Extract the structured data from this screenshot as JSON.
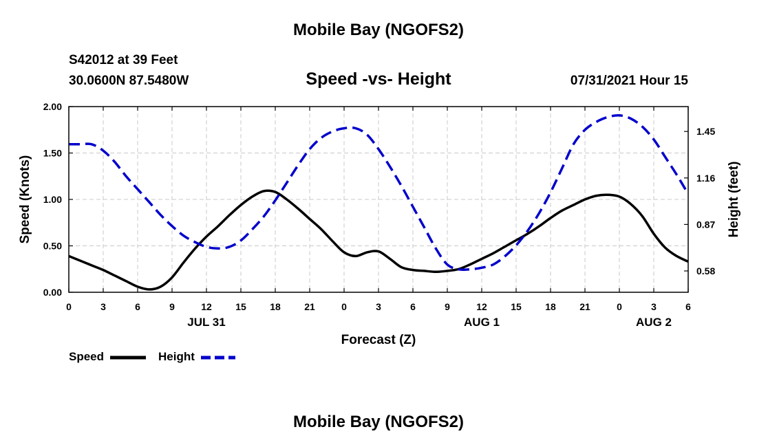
{
  "header": {
    "main_title": "Mobile Bay (NGOFS2)",
    "station": "S42012 at 39 Feet",
    "coords": "30.0600N  87.5480W",
    "subtitle": "Speed -vs- Height",
    "datetime": "07/31/2021 Hour 15"
  },
  "footer": {
    "title": "Mobile Bay (NGOFS2)"
  },
  "chart_data": {
    "type": "line",
    "title": "Speed -vs- Height",
    "xlabel": "Forecast (Z)",
    "ylabel": "Speed (Knots)",
    "y2label": "Height (feet)",
    "xlim": [
      0,
      54
    ],
    "ylim": [
      0,
      2.0
    ],
    "y2lim": [
      0.447,
      1.605
    ],
    "x_ticks": [
      0,
      3,
      6,
      9,
      12,
      15,
      18,
      21,
      24,
      27,
      30,
      33,
      36,
      39,
      42,
      45,
      48,
      51,
      54
    ],
    "x_tick_labels": [
      "0",
      "3",
      "6",
      "9",
      "12",
      "15",
      "18",
      "21",
      "0",
      "3",
      "6",
      "9",
      "12",
      "15",
      "18",
      "21",
      "0",
      "3",
      "6"
    ],
    "date_labels": [
      {
        "x": 12,
        "label": "JUL 31"
      },
      {
        "x": 36,
        "label": "AUG 1"
      },
      {
        "x": 51,
        "label": "AUG 2"
      }
    ],
    "y_ticks": [
      0,
      0.5,
      1.0,
      1.5,
      2.0
    ],
    "y_tick_labels": [
      "0.00",
      "0.50",
      "1.00",
      "1.50",
      "2.00"
    ],
    "y2_ticks": [
      0.58,
      0.87,
      1.16,
      1.45
    ],
    "y2_tick_labels": [
      "0.58",
      "0.87",
      "1.16",
      "1.45"
    ],
    "grid": true,
    "legend": "bottom-left",
    "series": [
      {
        "name": "Speed",
        "axis": "left",
        "color": "#000000",
        "style": "solid",
        "x": [
          0,
          1,
          2,
          3,
          4,
          5,
          6,
          7,
          8,
          9,
          10,
          11,
          12,
          13,
          14,
          15,
          16,
          17,
          18,
          19,
          20,
          21,
          22,
          23,
          24,
          25,
          26,
          27,
          28,
          29,
          30,
          31,
          32,
          33,
          34,
          35,
          36,
          37,
          38,
          39,
          40,
          41,
          42,
          43,
          44,
          45,
          46,
          47,
          48,
          49,
          50,
          51,
          52,
          53,
          54
        ],
        "values": [
          0.39,
          0.34,
          0.29,
          0.24,
          0.18,
          0.12,
          0.06,
          0.03,
          0.06,
          0.16,
          0.32,
          0.47,
          0.6,
          0.71,
          0.83,
          0.94,
          1.03,
          1.09,
          1.08,
          1.0,
          0.9,
          0.79,
          0.68,
          0.55,
          0.43,
          0.39,
          0.43,
          0.44,
          0.36,
          0.27,
          0.24,
          0.23,
          0.22,
          0.23,
          0.25,
          0.3,
          0.36,
          0.42,
          0.49,
          0.56,
          0.63,
          0.71,
          0.8,
          0.88,
          0.94,
          1.0,
          1.04,
          1.05,
          1.03,
          0.95,
          0.82,
          0.63,
          0.48,
          0.39,
          0.33
        ]
      },
      {
        "name": "Height",
        "axis": "right",
        "color": "#0000cc",
        "style": "dashed",
        "x": [
          0,
          1,
          2,
          3,
          4,
          5,
          6,
          7,
          8,
          9,
          10,
          11,
          12,
          13,
          14,
          15,
          16,
          17,
          18,
          19,
          20,
          21,
          22,
          23,
          24,
          25,
          26,
          27,
          28,
          29,
          30,
          31,
          32,
          33,
          34,
          35,
          36,
          37,
          38,
          39,
          40,
          41,
          42,
          43,
          44,
          45,
          46,
          47,
          48,
          49,
          50,
          51,
          52,
          53,
          54
        ],
        "values": [
          1.37,
          1.37,
          1.37,
          1.33,
          1.26,
          1.17,
          1.09,
          1.01,
          0.93,
          0.86,
          0.8,
          0.76,
          0.73,
          0.72,
          0.73,
          0.77,
          0.84,
          0.92,
          1.02,
          1.13,
          1.24,
          1.34,
          1.41,
          1.45,
          1.47,
          1.47,
          1.43,
          1.34,
          1.23,
          1.11,
          0.98,
          0.85,
          0.72,
          0.62,
          0.59,
          0.59,
          0.6,
          0.62,
          0.67,
          0.74,
          0.83,
          0.94,
          1.07,
          1.22,
          1.37,
          1.46,
          1.51,
          1.54,
          1.55,
          1.53,
          1.48,
          1.4,
          1.29,
          1.18,
          1.06
        ]
      }
    ]
  }
}
